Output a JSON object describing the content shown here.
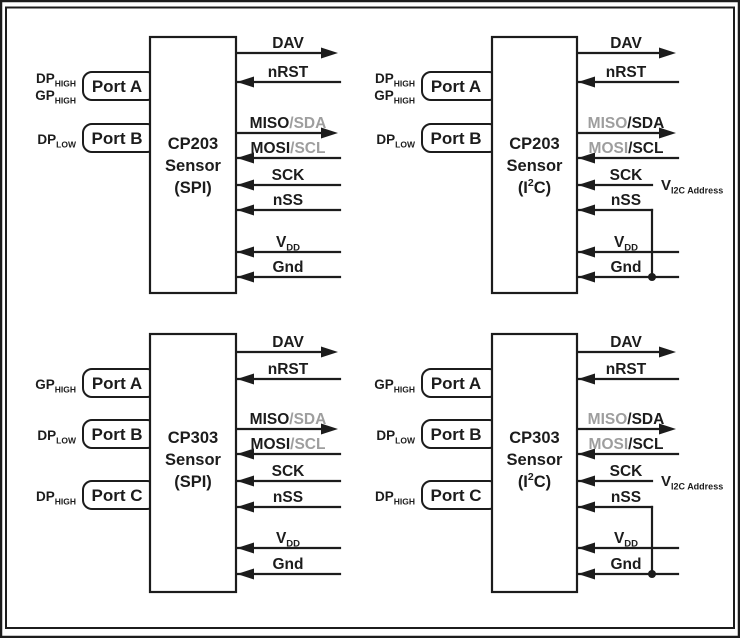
{
  "colors": {
    "ink": "#1c1c1c",
    "muted": "#9e9e9e",
    "background": "#ffffff"
  },
  "units": [
    {
      "id": "cp203-spi",
      "name": "CP203",
      "subtitle": "Sensor",
      "interface": "SPI",
      "ports": [
        {
          "label": "Port A",
          "tags": [
            {
              "main": "DP",
              "sub": "HIGH"
            },
            {
              "main": "GP",
              "sub": "HIGH"
            }
          ]
        },
        {
          "label": "Port B",
          "tags": [
            {
              "main": "DP",
              "sub": "LOW"
            }
          ]
        }
      ],
      "pins": [
        {
          "id": "dav",
          "dir": "out",
          "parts": [
            {
              "text": "DAV",
              "tone": "ink"
            }
          ]
        },
        {
          "id": "nrst",
          "dir": "in",
          "parts": [
            {
              "text": "nRST",
              "tone": "ink"
            }
          ]
        },
        {
          "id": "miso-sda",
          "dir": "out",
          "parts": [
            {
              "text": "MISO",
              "tone": "ink"
            },
            {
              "text": "/SDA",
              "tone": "muted"
            }
          ]
        },
        {
          "id": "mosi-scl",
          "dir": "in",
          "parts": [
            {
              "text": "MOSI",
              "tone": "ink"
            },
            {
              "text": "/SCL",
              "tone": "muted"
            }
          ]
        },
        {
          "id": "sck",
          "dir": "in",
          "parts": [
            {
              "text": "SCK",
              "tone": "ink"
            }
          ]
        },
        {
          "id": "nss",
          "dir": "in",
          "parts": [
            {
              "text": "nSS",
              "tone": "ink"
            }
          ]
        },
        {
          "id": "vdd",
          "dir": "in",
          "parts": [
            {
              "text": "V",
              "tone": "ink"
            }
          ],
          "sub": "DD"
        },
        {
          "id": "gnd",
          "dir": "in",
          "parts": [
            {
              "text": "Gnd",
              "tone": "ink"
            }
          ]
        }
      ]
    },
    {
      "id": "cp203-i2c",
      "name": "CP203",
      "subtitle": "Sensor",
      "interface": "I2C",
      "nss_tied_to_gnd": true,
      "address_label": {
        "main": "V",
        "sub": "I2C Address"
      },
      "ports": [
        {
          "label": "Port A",
          "tags": [
            {
              "main": "DP",
              "sub": "HIGH"
            },
            {
              "main": "GP",
              "sub": "HIGH"
            }
          ]
        },
        {
          "label": "Port B",
          "tags": [
            {
              "main": "DP",
              "sub": "LOW"
            }
          ]
        }
      ],
      "pins": [
        {
          "id": "dav",
          "dir": "out",
          "parts": [
            {
              "text": "DAV",
              "tone": "ink"
            }
          ]
        },
        {
          "id": "nrst",
          "dir": "in",
          "parts": [
            {
              "text": "nRST",
              "tone": "ink"
            }
          ]
        },
        {
          "id": "miso-sda",
          "dir": "out",
          "parts": [
            {
              "text": "MISO",
              "tone": "muted"
            },
            {
              "text": "/SDA",
              "tone": "ink"
            }
          ]
        },
        {
          "id": "mosi-scl",
          "dir": "in",
          "parts": [
            {
              "text": "MOSI",
              "tone": "muted"
            },
            {
              "text": "/SCL",
              "tone": "ink"
            }
          ]
        },
        {
          "id": "sck",
          "dir": "in",
          "parts": [
            {
              "text": "SCK",
              "tone": "ink"
            }
          ]
        },
        {
          "id": "nss",
          "dir": "in",
          "parts": [
            {
              "text": "nSS",
              "tone": "ink"
            }
          ]
        },
        {
          "id": "vdd",
          "dir": "in",
          "parts": [
            {
              "text": "V",
              "tone": "ink"
            }
          ],
          "sub": "DD"
        },
        {
          "id": "gnd",
          "dir": "in",
          "parts": [
            {
              "text": "Gnd",
              "tone": "ink"
            }
          ]
        }
      ]
    },
    {
      "id": "cp303-spi",
      "name": "CP303",
      "subtitle": "Sensor",
      "interface": "SPI",
      "ports": [
        {
          "label": "Port A",
          "tags": [
            {
              "main": "GP",
              "sub": "HIGH"
            }
          ]
        },
        {
          "label": "Port B",
          "tags": [
            {
              "main": "DP",
              "sub": "LOW"
            }
          ]
        },
        {
          "label": "Port C",
          "tags": [
            {
              "main": "DP",
              "sub": "HIGH"
            }
          ]
        }
      ],
      "pins": [
        {
          "id": "dav",
          "dir": "out",
          "parts": [
            {
              "text": "DAV",
              "tone": "ink"
            }
          ]
        },
        {
          "id": "nrst",
          "dir": "in",
          "parts": [
            {
              "text": "nRST",
              "tone": "ink"
            }
          ]
        },
        {
          "id": "miso-sda",
          "dir": "out",
          "parts": [
            {
              "text": "MISO",
              "tone": "ink"
            },
            {
              "text": "/SDA",
              "tone": "muted"
            }
          ]
        },
        {
          "id": "mosi-scl",
          "dir": "in",
          "parts": [
            {
              "text": "MOSI",
              "tone": "ink"
            },
            {
              "text": "/SCL",
              "tone": "muted"
            }
          ]
        },
        {
          "id": "sck",
          "dir": "in",
          "parts": [
            {
              "text": "SCK",
              "tone": "ink"
            }
          ]
        },
        {
          "id": "nss",
          "dir": "in",
          "parts": [
            {
              "text": "nSS",
              "tone": "ink"
            }
          ]
        },
        {
          "id": "vdd",
          "dir": "in",
          "parts": [
            {
              "text": "V",
              "tone": "ink"
            }
          ],
          "sub": "DD"
        },
        {
          "id": "gnd",
          "dir": "in",
          "parts": [
            {
              "text": "Gnd",
              "tone": "ink"
            }
          ]
        }
      ]
    },
    {
      "id": "cp303-i2c",
      "name": "CP303",
      "subtitle": "Sensor",
      "interface": "I2C",
      "nss_tied_to_gnd": true,
      "address_label": {
        "main": "V",
        "sub": "I2C Address"
      },
      "ports": [
        {
          "label": "Port A",
          "tags": [
            {
              "main": "GP",
              "sub": "HIGH"
            }
          ]
        },
        {
          "label": "Port B",
          "tags": [
            {
              "main": "DP",
              "sub": "LOW"
            }
          ]
        },
        {
          "label": "Port C",
          "tags": [
            {
              "main": "DP",
              "sub": "HIGH"
            }
          ]
        }
      ],
      "pins": [
        {
          "id": "dav",
          "dir": "out",
          "parts": [
            {
              "text": "DAV",
              "tone": "ink"
            }
          ]
        },
        {
          "id": "nrst",
          "dir": "in",
          "parts": [
            {
              "text": "nRST",
              "tone": "ink"
            }
          ]
        },
        {
          "id": "miso-sda",
          "dir": "out",
          "parts": [
            {
              "text": "MISO",
              "tone": "muted"
            },
            {
              "text": "/SDA",
              "tone": "ink"
            }
          ]
        },
        {
          "id": "mosi-scl",
          "dir": "in",
          "parts": [
            {
              "text": "MOSI",
              "tone": "muted"
            },
            {
              "text": "/SCL",
              "tone": "ink"
            }
          ]
        },
        {
          "id": "sck",
          "dir": "in",
          "parts": [
            {
              "text": "SCK",
              "tone": "ink"
            }
          ]
        },
        {
          "id": "nss",
          "dir": "in",
          "parts": [
            {
              "text": "nSS",
              "tone": "ink"
            }
          ]
        },
        {
          "id": "vdd",
          "dir": "in",
          "parts": [
            {
              "text": "V",
              "tone": "ink"
            }
          ],
          "sub": "DD"
        },
        {
          "id": "gnd",
          "dir": "in",
          "parts": [
            {
              "text": "Gnd",
              "tone": "ink"
            }
          ]
        }
      ]
    }
  ]
}
